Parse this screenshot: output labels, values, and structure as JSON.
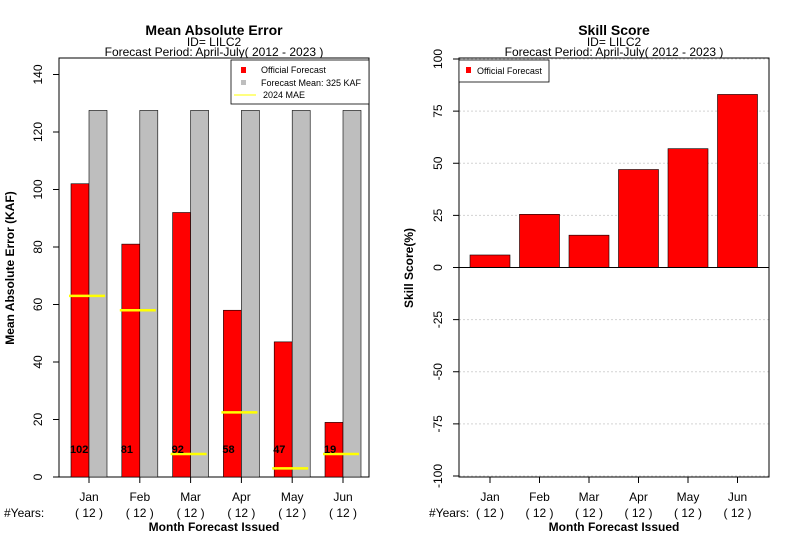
{
  "chart_data": [
    {
      "type": "bar",
      "title": "Mean Absolute Error",
      "subtitle_id": "ID= LILC2",
      "subtitle_period": "Forecast Period: April-July( 2012 - 2023 )",
      "ylabel": "Mean Absolute Error (KAF)",
      "xlabel": "Month Forecast Issued",
      "ylim": [
        0,
        145
      ],
      "yticks": [
        0,
        20,
        40,
        60,
        80,
        100,
        120,
        140
      ],
      "categories": [
        "Jan",
        "Feb",
        "Mar",
        "Apr",
        "May",
        "Jun"
      ],
      "years_label": "#Years:",
      "years": [
        "( 12 )",
        "( 12 )",
        "( 12 )",
        "( 12 )",
        "( 12 )",
        "( 12 )"
      ],
      "series": [
        {
          "name": "Official Forecast",
          "color": "#ff0000",
          "values": [
            102,
            81,
            92,
            58,
            47,
            19
          ]
        },
        {
          "name": "Forecast Mean: 325 KAF",
          "color": "#bebebe",
          "values": [
            127.5,
            127.5,
            127.5,
            127.5,
            127.5,
            127.5
          ]
        },
        {
          "name": "2024  MAE",
          "color": "#ffff00",
          "values": [
            63,
            58,
            8,
            22.5,
            3,
            8
          ]
        }
      ],
      "data_labels": [
        "102",
        "81",
        "92",
        "58",
        "47",
        "19"
      ],
      "legend": "top-right",
      "grid": false
    },
    {
      "type": "bar",
      "title": "Skill Score",
      "subtitle_id": "ID= LILC2",
      "subtitle_period": "Forecast Period: April-July( 2012 - 2023 )",
      "ylabel": "Skill Score(%)",
      "xlabel": "Month Forecast Issued",
      "ylim": [
        -100,
        100
      ],
      "yticks": [
        -100,
        -75,
        -50,
        -25,
        0,
        25,
        50,
        75,
        100
      ],
      "categories": [
        "Jan",
        "Feb",
        "Mar",
        "Apr",
        "May",
        "Jun"
      ],
      "years_label": "#Years:",
      "years": [
        "( 12 )",
        "( 12 )",
        "( 12 )",
        "( 12 )",
        "( 12 )",
        "( 12 )"
      ],
      "series": [
        {
          "name": "Official Forecast",
          "color": "#ff0000",
          "values": [
            6,
            25.5,
            15.5,
            47,
            57,
            83
          ]
        }
      ],
      "legend": "top-left",
      "grid": true
    }
  ]
}
